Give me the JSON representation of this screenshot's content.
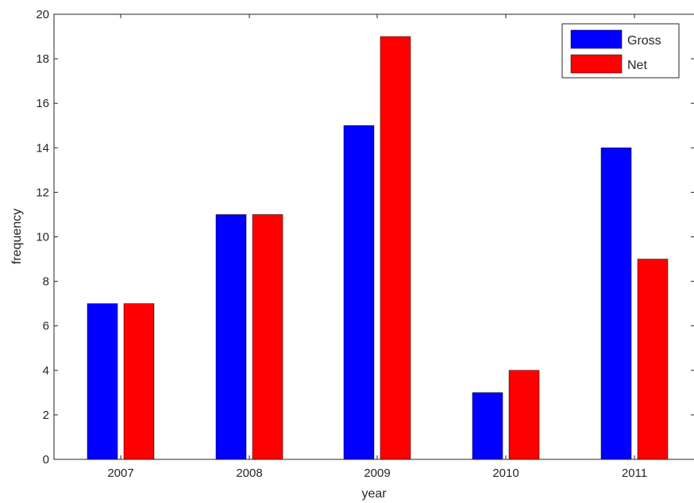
{
  "chart_data": {
    "type": "bar",
    "title": "",
    "xlabel": "year",
    "ylabel": "frequency",
    "categories": [
      "2007",
      "2008",
      "2009",
      "2010",
      "2011"
    ],
    "series": [
      {
        "name": "Gross",
        "values": [
          7,
          11,
          15,
          3,
          14
        ],
        "color": "#0000ff"
      },
      {
        "name": "Net",
        "values": [
          7,
          11,
          19,
          4,
          9
        ],
        "color": "#ff0000"
      }
    ],
    "ylim": [
      0,
      20
    ],
    "yticks": [
      0,
      2,
      4,
      6,
      8,
      10,
      12,
      14,
      16,
      18,
      20
    ],
    "grid": false,
    "legend_position": "top-right"
  }
}
